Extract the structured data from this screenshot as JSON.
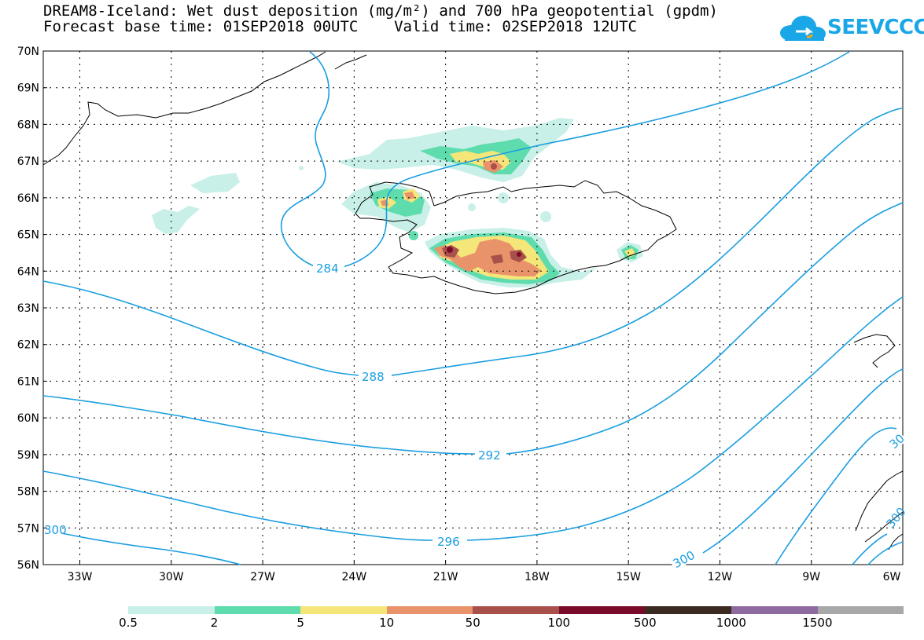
{
  "title": {
    "line1": "DREAM8-Iceland: Wet dust deposition (mg/m²) and 700 hPa geopotential (gpdm)",
    "line2": "Forecast base time: 01SEP2018 00UTC    Valid time: 02SEP2018 12UTC"
  },
  "logo": {
    "text": "SEEVCCC",
    "icon": "cloud-icon",
    "color": "#1aa7e8"
  },
  "map": {
    "lat_range": [
      56,
      70
    ],
    "lon_range": [
      -34.2,
      -6
    ],
    "lat_labels": [
      "70N",
      "69N",
      "68N",
      "67N",
      "66N",
      "65N",
      "64N",
      "63N",
      "62N",
      "61N",
      "60N",
      "59N",
      "58N",
      "57N",
      "56N"
    ],
    "lon_labels": [
      "33W",
      "30W",
      "27W",
      "24W",
      "21W",
      "18W",
      "15W",
      "12W",
      "9W",
      "6W"
    ],
    "contour_color": "#1a9ee0",
    "contour_labels": [
      "284",
      "288",
      "292",
      "296",
      "300",
      "300",
      "300",
      "30"
    ]
  },
  "legend": {
    "colors": [
      "#c8f0e8",
      "#5fdcae",
      "#f5e67a",
      "#e9936a",
      "#a8514a",
      "#7a0a2a",
      "#3a2a20",
      "#8e6aa0",
      "#a8a8a8"
    ],
    "labels": [
      "0.5",
      "2",
      "5",
      "10",
      "50",
      "100",
      "500",
      "1000",
      "1500"
    ]
  }
}
